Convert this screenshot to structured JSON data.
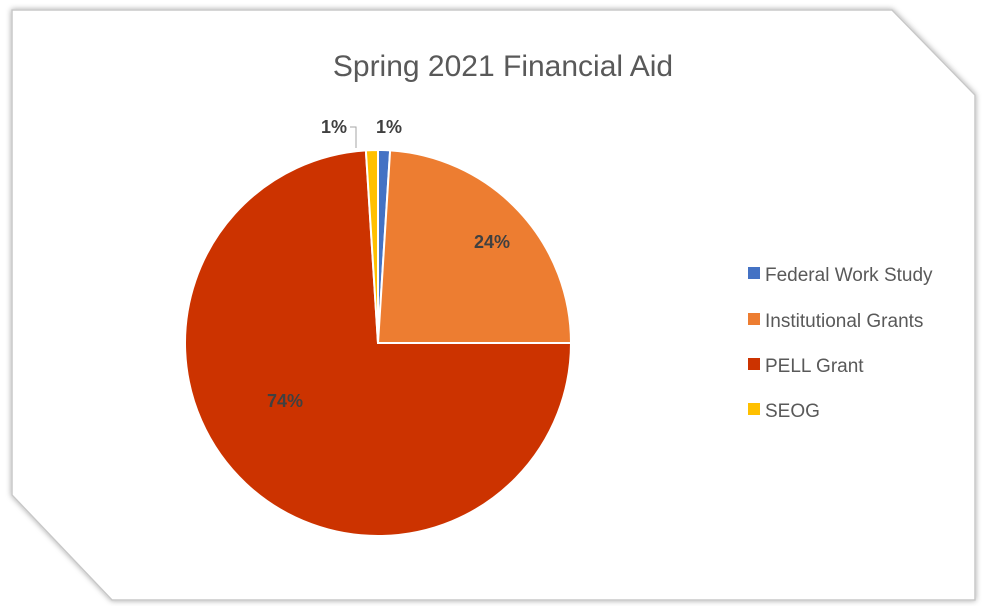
{
  "chart_data": {
    "type": "pie",
    "title": "Spring 2021 Financial Aid",
    "legend_position": "right",
    "slices": [
      {
        "name": "Federal Work Study",
        "value": 1,
        "label": "1%",
        "color": "#4472C4"
      },
      {
        "name": "Institutional Grants",
        "value": 24,
        "label": "24%",
        "color": "#ED7D31"
      },
      {
        "name": "PELL Grant",
        "value": 74,
        "label": "74%",
        "color": "#CC3300"
      },
      {
        "name": "SEOG",
        "value": 1,
        "label": "1%",
        "color": "#FFC000"
      }
    ]
  },
  "colors": {
    "frame_border": "#c8c8c8",
    "background": "#ffffff"
  }
}
